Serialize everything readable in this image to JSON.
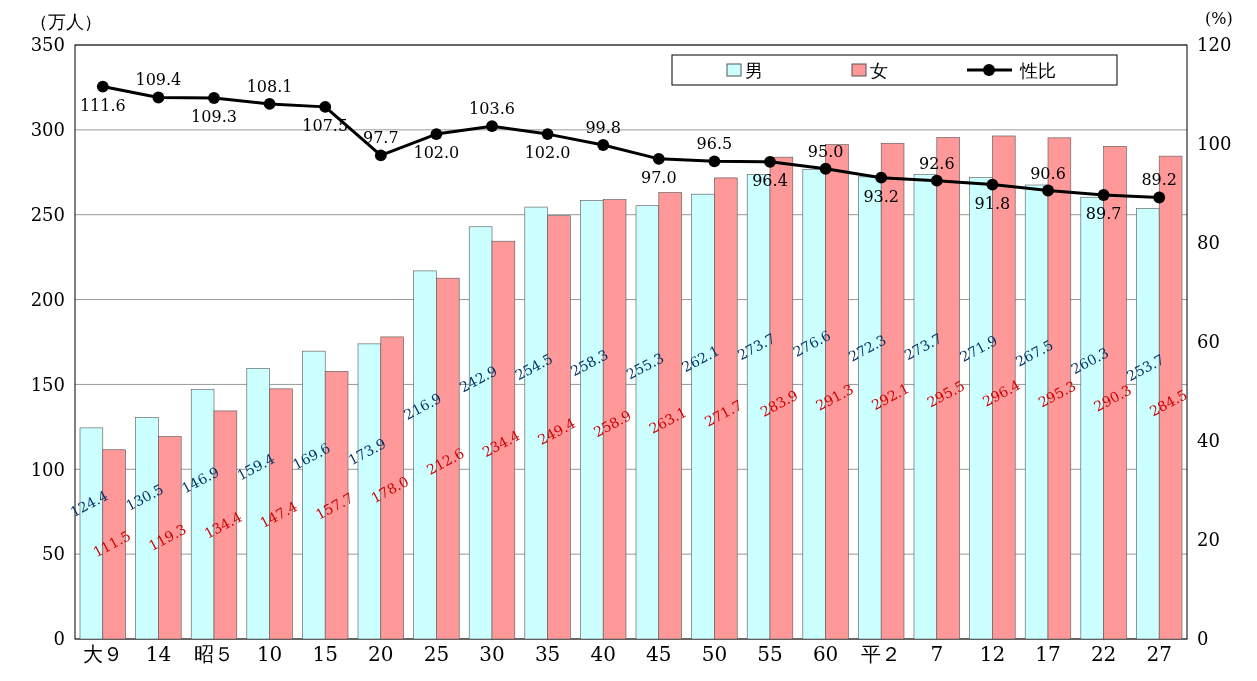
{
  "chart_data": {
    "type": "bar",
    "ylabel": "（万人）",
    "y2label": "(%)",
    "categories": [
      "大９",
      "14",
      "昭５",
      "10",
      "15",
      "20",
      "25",
      "30",
      "35",
      "40",
      "45",
      "50",
      "55",
      "60",
      "平２",
      "7",
      "12",
      "17",
      "22",
      "27"
    ],
    "series": [
      {
        "name": "男",
        "color": "#ccffff",
        "values": [
          124.4,
          130.5,
          146.9,
          159.4,
          169.6,
          173.9,
          216.9,
          242.9,
          254.5,
          258.3,
          255.3,
          262.1,
          273.7,
          276.6,
          272.3,
          273.7,
          271.9,
          267.5,
          260.3,
          253.7
        ],
        "value_labels": [
          "124.4",
          "130.5",
          "146.9",
          "159.4",
          "169.6",
          "173.9",
          "216.9",
          "242.9",
          "254.5",
          "258.3",
          "255.3",
          "262.1",
          "273.7",
          "276.6",
          "272.3",
          "273.7",
          "271.9",
          "267.5",
          "260.3",
          "253.7"
        ]
      },
      {
        "name": "女",
        "color": "#ff9999",
        "values": [
          111.5,
          119.3,
          134.4,
          147.4,
          157.7,
          178.0,
          212.6,
          234.4,
          249.4,
          258.9,
          263.1,
          271.7,
          283.9,
          291.3,
          292.1,
          295.5,
          296.4,
          295.3,
          290.3,
          284.5
        ],
        "value_labels": [
          "111.5",
          "119.3",
          "134.4",
          "147.4",
          "157.7",
          "178.0",
          "212.6",
          "234.4",
          "249.4",
          "258.9",
          "263.1",
          "271.7",
          "283.9",
          "291.3",
          "292.1",
          "295.5",
          "296.4",
          "295.3",
          "290.3",
          "284.5"
        ]
      },
      {
        "name": "性比",
        "type": "line",
        "axis": "y2",
        "color": "#000000",
        "marker": "circle",
        "values": [
          111.6,
          109.4,
          109.3,
          108.1,
          107.5,
          97.7,
          102.0,
          103.6,
          102.0,
          99.8,
          97.0,
          96.5,
          96.4,
          95.0,
          93.2,
          92.6,
          91.8,
          90.6,
          89.7,
          89.2
        ],
        "value_labels": [
          "111.6",
          "109.4",
          "109.3",
          "108.1",
          "107.5",
          "97.7",
          "102.0",
          "103.6",
          "102.0",
          "99.8",
          "97.0",
          "96.5",
          "96.4",
          "95.0",
          "93.2",
          "92.6",
          "91.8",
          "90.6",
          "89.7",
          "89.2"
        ]
      }
    ],
    "ylim": [
      0,
      350
    ],
    "yticks": [
      0,
      50,
      100,
      150,
      200,
      250,
      300,
      350
    ],
    "y2lim": [
      0,
      120
    ],
    "y2ticks": [
      0,
      20,
      40,
      60,
      80,
      100,
      120
    ],
    "grid": "y",
    "legend": "top right"
  }
}
